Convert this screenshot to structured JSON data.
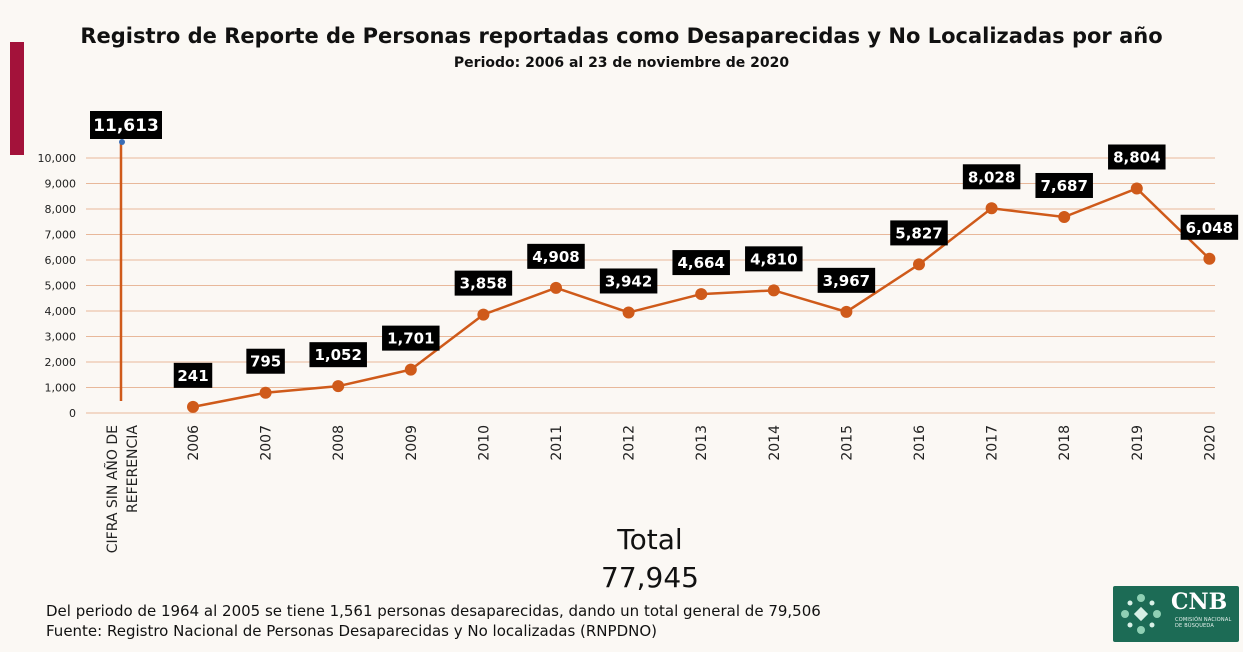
{
  "header": {
    "title": "Registro de Reporte de Personas reportadas como Desaparecidas y No Localizadas por año",
    "subtitle": "Periodo: 2006 al 23 de noviembre de 2020"
  },
  "chart_data": {
    "type": "line",
    "title": "Registro de Reporte de Personas reportadas como Desaparecidas y No Localizadas por año",
    "subtitle": "Periodo: 2006 al 23 de noviembre de 2020",
    "ylim": [
      0,
      10000
    ],
    "yticks": [
      0,
      1000,
      2000,
      3000,
      4000,
      5000,
      6000,
      7000,
      8000,
      9000,
      10000
    ],
    "ytick_labels": [
      "0",
      "1,000",
      "2,000",
      "3,000",
      "4,000",
      "5,000",
      "6,000",
      "7,000",
      "8,000",
      "9,000",
      "10,000"
    ],
    "grid": true,
    "reference": {
      "category_lines": [
        "CIFRA SIN AÑO DE",
        "REFERENCIA"
      ],
      "value": 11613,
      "label": "11,613"
    },
    "categories": [
      "2006",
      "2007",
      "2008",
      "2009",
      "2010",
      "2011",
      "2012",
      "2013",
      "2014",
      "2015",
      "2016",
      "2017",
      "2018",
      "2019",
      "2020"
    ],
    "values": [
      241,
      795,
      1052,
      1701,
      3858,
      4908,
      3942,
      4664,
      4810,
      3967,
      5827,
      8028,
      7687,
      8804,
      6048
    ],
    "labels": [
      "241",
      "795",
      "1,052",
      "1,701",
      "3,858",
      "4,908",
      "3,942",
      "4,664",
      "4,810",
      "3,967",
      "5,827",
      "8,028",
      "7,687",
      "8,804",
      "6,048"
    ],
    "series_color": "#cf5a1a",
    "grid_color": "#e8b89a",
    "label_bg": "#000000"
  },
  "summary": {
    "total_label": "Total",
    "total_value": "77,945"
  },
  "footer": {
    "note": "Del periodo de 1964 al 2005 se tiene 1,561 personas desaparecidas, dando un total general de 79,506",
    "source": "Fuente: Registro Nacional de Personas Desaparecidas y No localizadas (RNPDNO)"
  },
  "logo": {
    "acronym": "CNB",
    "subtitle": "COMISIÓN NACIONAL DE BÚSQUEDA",
    "color": "#1c6b55"
  }
}
